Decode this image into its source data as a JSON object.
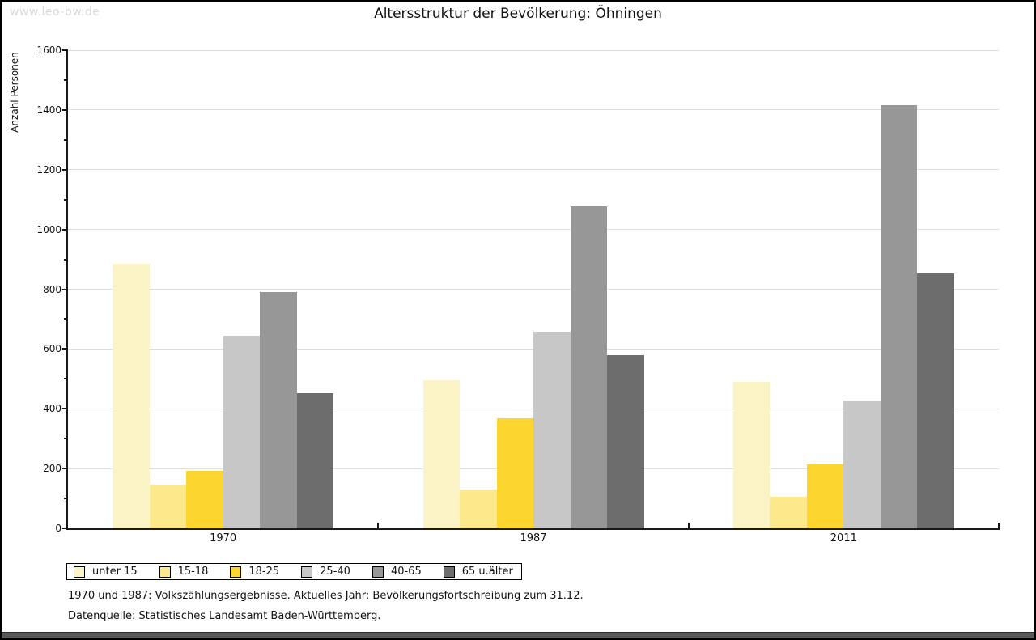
{
  "watermark": "www.leo-bw.de",
  "header": {
    "title": "Altersstruktur der Bevölkerung: Öhningen"
  },
  "footnotes": {
    "line1": "1970 und 1987: Volkszählungsergebnisse. Aktuelles Jahr: Bevölkerungsfortschreibung zum 31.12.",
    "line2": "Datenquelle: Statistisches Landesamt Baden-Württemberg."
  },
  "colors": {
    "gridline": "#dedede",
    "axis": "#1a1a1a",
    "watermark": "#d9d9d9",
    "bottom_bar": "#585858"
  },
  "chart_data": {
    "type": "bar",
    "title": "Altersstruktur der Bevölkerung: Öhningen",
    "xlabel": "",
    "ylabel": "Anzahl Personen",
    "categories": [
      "1970",
      "1987",
      "2011"
    ],
    "series": [
      {
        "name": "unter 15",
        "color": "#faf3c6",
        "values": [
          886,
          496,
          490
        ]
      },
      {
        "name": "15-18",
        "color": "#fce98c",
        "values": [
          147,
          130,
          105
        ]
      },
      {
        "name": "18-25",
        "color": "#fcd62e",
        "values": [
          193,
          368,
          215
        ]
      },
      {
        "name": "25-40",
        "color": "#c7c7c7",
        "values": [
          644,
          657,
          429
        ]
      },
      {
        "name": "40-65",
        "color": "#979797",
        "values": [
          790,
          1078,
          1417
        ]
      },
      {
        "name": "65 u.älter",
        "color": "#6d6d6d",
        "values": [
          452,
          580,
          854
        ]
      }
    ],
    "ylim": [
      0,
      1600
    ],
    "ytick_step": 200,
    "yminor_step": 100,
    "grid": true,
    "legend_position": "bottom-left"
  }
}
